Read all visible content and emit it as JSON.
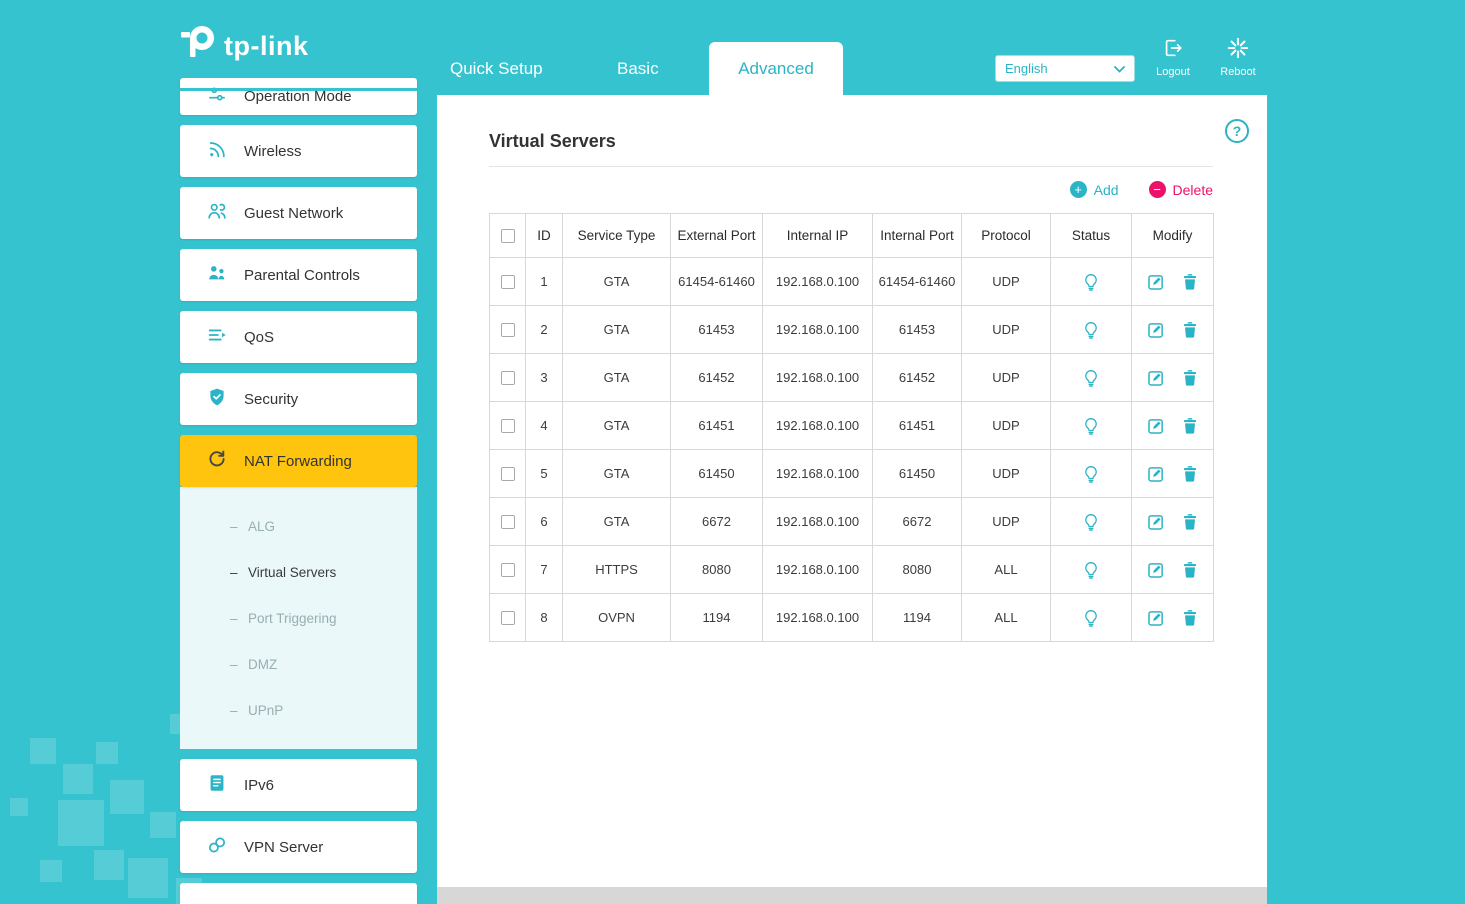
{
  "colors": {
    "teal_background": "#36c3d0",
    "accent_teal": "#2ab4c6",
    "active_yellow": "#ffc40d",
    "delete_pink": "#ed1169"
  },
  "header": {
    "brand": "tp-link",
    "tabs": [
      {
        "label": "Quick Setup",
        "active": false
      },
      {
        "label": "Basic",
        "active": false
      },
      {
        "label": "Advanced",
        "active": true
      }
    ],
    "language": {
      "selected": "English"
    },
    "logout_label": "Logout",
    "reboot_label": "Reboot"
  },
  "sidebar": {
    "items": [
      {
        "label": "Operation Mode"
      },
      {
        "label": "Wireless"
      },
      {
        "label": "Guest Network"
      },
      {
        "label": "Parental Controls"
      },
      {
        "label": "QoS"
      },
      {
        "label": "Security"
      },
      {
        "label": "NAT Forwarding",
        "active": true
      },
      {
        "label": "IPv6"
      },
      {
        "label": "VPN Server"
      }
    ],
    "submenu": [
      {
        "label": "ALG",
        "active": false
      },
      {
        "label": "Virtual Servers",
        "active": true
      },
      {
        "label": "Port Triggering",
        "active": false
      },
      {
        "label": "DMZ",
        "active": false
      },
      {
        "label": "UPnP",
        "active": false
      }
    ]
  },
  "main": {
    "title": "Virtual Servers",
    "help_glyph": "?",
    "actions": {
      "add": "Add",
      "add_symbol": "+",
      "delete": "Delete",
      "delete_symbol": "−"
    },
    "table": {
      "headers": [
        "ID",
        "Service Type",
        "External Port",
        "Internal IP",
        "Internal Port",
        "Protocol",
        "Status",
        "Modify"
      ],
      "rows": [
        {
          "id": "1",
          "service_type": "GTA",
          "external_port": "61454-61460",
          "internal_ip": "192.168.0.100",
          "internal_port": "61454-61460",
          "protocol": "UDP"
        },
        {
          "id": "2",
          "service_type": "GTA",
          "external_port": "61453",
          "internal_ip": "192.168.0.100",
          "internal_port": "61453",
          "protocol": "UDP"
        },
        {
          "id": "3",
          "service_type": "GTA",
          "external_port": "61452",
          "internal_ip": "192.168.0.100",
          "internal_port": "61452",
          "protocol": "UDP"
        },
        {
          "id": "4",
          "service_type": "GTA",
          "external_port": "61451",
          "internal_ip": "192.168.0.100",
          "internal_port": "61451",
          "protocol": "UDP"
        },
        {
          "id": "5",
          "service_type": "GTA",
          "external_port": "61450",
          "internal_ip": "192.168.0.100",
          "internal_port": "61450",
          "protocol": "UDP"
        },
        {
          "id": "6",
          "service_type": "GTA",
          "external_port": "6672",
          "internal_ip": "192.168.0.100",
          "internal_port": "6672",
          "protocol": "UDP"
        },
        {
          "id": "7",
          "service_type": "HTTPS",
          "external_port": "8080",
          "internal_ip": "192.168.0.100",
          "internal_port": "8080",
          "protocol": "ALL"
        },
        {
          "id": "8",
          "service_type": "OVPN",
          "external_port": "1194",
          "internal_ip": "192.168.0.100",
          "internal_port": "1194",
          "protocol": "ALL"
        }
      ]
    }
  }
}
